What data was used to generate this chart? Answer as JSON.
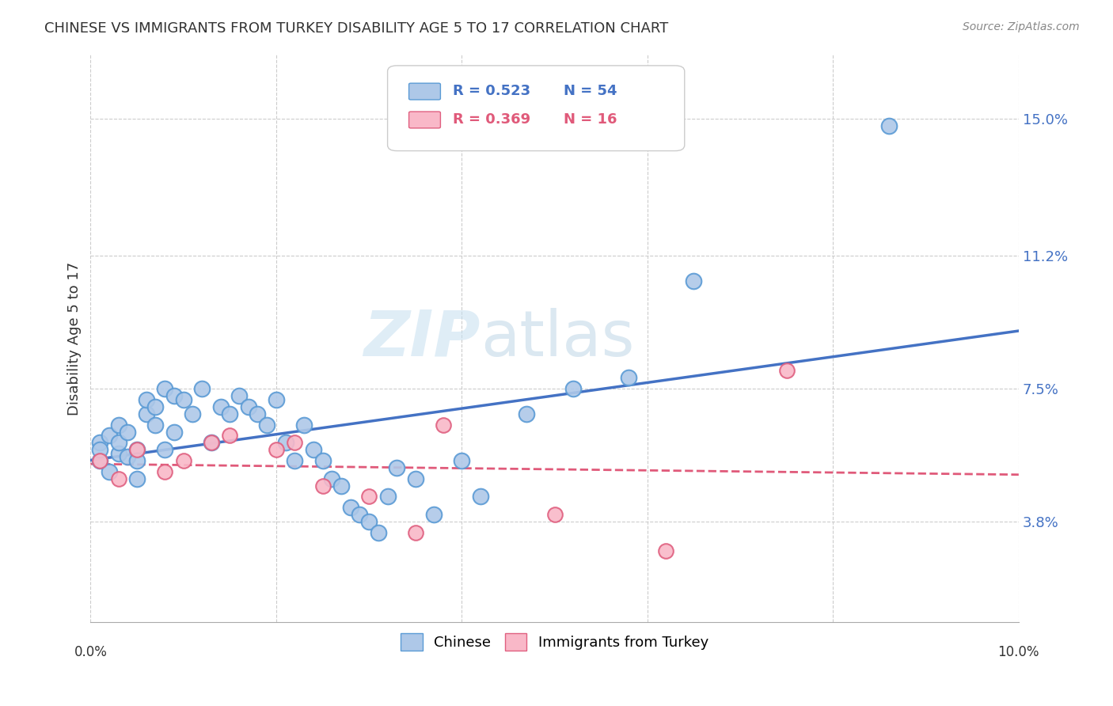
{
  "title": "CHINESE VS IMMIGRANTS FROM TURKEY DISABILITY AGE 5 TO 17 CORRELATION CHART",
  "source": "Source: ZipAtlas.com",
  "ylabel": "Disability Age 5 to 17",
  "yticks": [
    0.038,
    0.075,
    0.112,
    0.15
  ],
  "ytick_labels": [
    "3.8%",
    "7.5%",
    "11.2%",
    "15.0%"
  ],
  "xmin": 0.0,
  "xmax": 0.1,
  "ymin": 0.01,
  "ymax": 0.168,
  "legend_r1": "0.523",
  "legend_n1": "54",
  "legend_r2": "0.369",
  "legend_n2": "16",
  "legend_label1": "Chinese",
  "legend_label2": "Immigrants from Turkey",
  "blue_color": "#aec8e8",
  "blue_edge": "#5b9bd5",
  "pink_color": "#f9b8c8",
  "pink_edge": "#e06080",
  "blue_line_color": "#4472c4",
  "pink_line_color": "#e05a7a",
  "watermark_zip": "ZIP",
  "watermark_atlas": "atlas",
  "chinese_x": [
    0.001,
    0.001,
    0.001,
    0.002,
    0.002,
    0.003,
    0.003,
    0.003,
    0.004,
    0.004,
    0.005,
    0.005,
    0.005,
    0.006,
    0.006,
    0.007,
    0.007,
    0.008,
    0.008,
    0.009,
    0.009,
    0.01,
    0.011,
    0.012,
    0.013,
    0.014,
    0.015,
    0.016,
    0.017,
    0.018,
    0.019,
    0.02,
    0.021,
    0.022,
    0.023,
    0.024,
    0.025,
    0.026,
    0.027,
    0.028,
    0.029,
    0.03,
    0.031,
    0.032,
    0.033,
    0.035,
    0.037,
    0.04,
    0.042,
    0.047,
    0.052,
    0.058,
    0.065,
    0.086
  ],
  "chinese_y": [
    0.055,
    0.06,
    0.058,
    0.062,
    0.052,
    0.057,
    0.065,
    0.06,
    0.056,
    0.063,
    0.058,
    0.055,
    0.05,
    0.068,
    0.072,
    0.07,
    0.065,
    0.058,
    0.075,
    0.063,
    0.073,
    0.072,
    0.068,
    0.075,
    0.06,
    0.07,
    0.068,
    0.073,
    0.07,
    0.068,
    0.065,
    0.072,
    0.06,
    0.055,
    0.065,
    0.058,
    0.055,
    0.05,
    0.048,
    0.042,
    0.04,
    0.038,
    0.035,
    0.045,
    0.053,
    0.05,
    0.04,
    0.055,
    0.045,
    0.068,
    0.075,
    0.078,
    0.105,
    0.148
  ],
  "turkey_x": [
    0.001,
    0.003,
    0.005,
    0.008,
    0.01,
    0.013,
    0.015,
    0.02,
    0.022,
    0.025,
    0.03,
    0.035,
    0.038,
    0.05,
    0.062,
    0.075
  ],
  "turkey_y": [
    0.055,
    0.05,
    0.058,
    0.052,
    0.055,
    0.06,
    0.062,
    0.058,
    0.06,
    0.048,
    0.045,
    0.035,
    0.065,
    0.04,
    0.03,
    0.08
  ]
}
